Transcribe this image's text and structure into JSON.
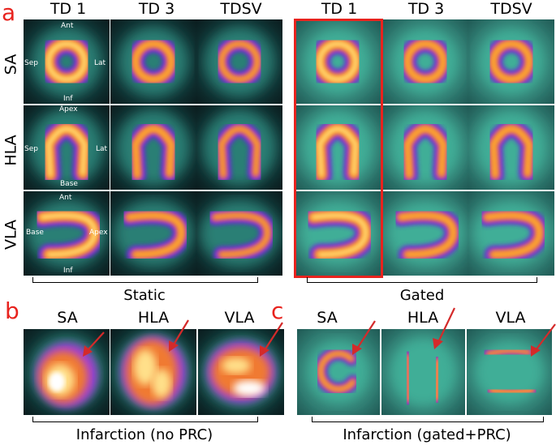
{
  "panels": {
    "a": {
      "letter": "a",
      "static_columns": [
        "TD 1",
        "TD 3",
        "TDSV"
      ],
      "gated_columns": [
        "TD 1",
        "TD 3",
        "TDSV"
      ],
      "rows": [
        "SA",
        "HLA",
        "VLA"
      ],
      "static_caption": "Static",
      "gated_caption": "Gated",
      "annotations": {
        "sa_ant": "Ant",
        "sa_sep": "Sep",
        "sa_lat": "Lat",
        "sa_inf": "Inf",
        "hla_apex": "Apex",
        "hla_sep": "Sep",
        "hla_lat": "Lat",
        "hla_base": "Base",
        "vla_ant": "Ant",
        "vla_base": "Base",
        "vla_apex": "Apex",
        "vla_inf": "Inf"
      }
    },
    "b": {
      "letter": "b",
      "columns": [
        "SA",
        "HLA",
        "VLA"
      ],
      "caption": "Infarction (no PRC)"
    },
    "c": {
      "letter": "c",
      "columns": [
        "SA",
        "HLA",
        "VLA"
      ],
      "caption": "Infarction (gated+PRC)"
    }
  },
  "colors": {
    "accent_red": "#e8231e",
    "arrow_red": "#d42a2a"
  }
}
